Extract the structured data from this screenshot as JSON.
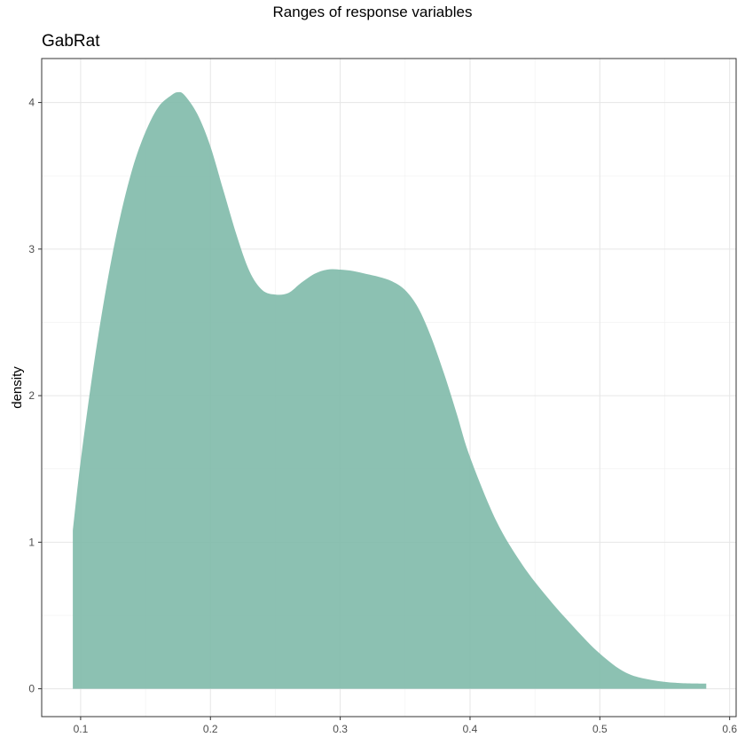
{
  "chart_data": {
    "type": "area",
    "title": "Ranges of response variables",
    "subtitle": "GabRat",
    "xlabel": "",
    "ylabel": "density",
    "xlim": [
      0.07,
      0.605
    ],
    "ylim": [
      -0.19,
      4.3
    ],
    "x_ticks": [
      0.1,
      0.2,
      0.3,
      0.4,
      0.5,
      0.6
    ],
    "x_tick_labels": [
      "0.1",
      "0.2",
      "0.3",
      "0.4",
      "0.5",
      "0.6"
    ],
    "y_ticks": [
      0,
      1,
      2,
      3,
      4
    ],
    "y_tick_labels": [
      "0",
      "1",
      "2",
      "3",
      "4"
    ],
    "x_minor_ticks": [
      0.15,
      0.25,
      0.35,
      0.45,
      0.55
    ],
    "y_minor_ticks": [
      0.5,
      1.5,
      2.5,
      3.5
    ],
    "grid": true,
    "fill_color": "#7fbaaa",
    "fill_opacity": 0.9,
    "series": [
      {
        "x": [
          0.094,
          0.1,
          0.11,
          0.12,
          0.13,
          0.14,
          0.15,
          0.16,
          0.17,
          0.175,
          0.18,
          0.19,
          0.2,
          0.21,
          0.22,
          0.23,
          0.24,
          0.25,
          0.26,
          0.27,
          0.28,
          0.29,
          0.3,
          0.31,
          0.32,
          0.33,
          0.34,
          0.35,
          0.36,
          0.37,
          0.38,
          0.39,
          0.4,
          0.42,
          0.44,
          0.46,
          0.48,
          0.5,
          0.52,
          0.54,
          0.56,
          0.582
        ],
        "y": [
          1.08,
          1.55,
          2.2,
          2.75,
          3.2,
          3.55,
          3.8,
          3.97,
          4.05,
          4.07,
          4.05,
          3.92,
          3.7,
          3.4,
          3.1,
          2.85,
          2.72,
          2.69,
          2.7,
          2.77,
          2.83,
          2.86,
          2.86,
          2.85,
          2.83,
          2.81,
          2.78,
          2.72,
          2.6,
          2.4,
          2.15,
          1.87,
          1.58,
          1.15,
          0.85,
          0.62,
          0.42,
          0.24,
          0.11,
          0.06,
          0.04,
          0.035
        ]
      }
    ]
  }
}
